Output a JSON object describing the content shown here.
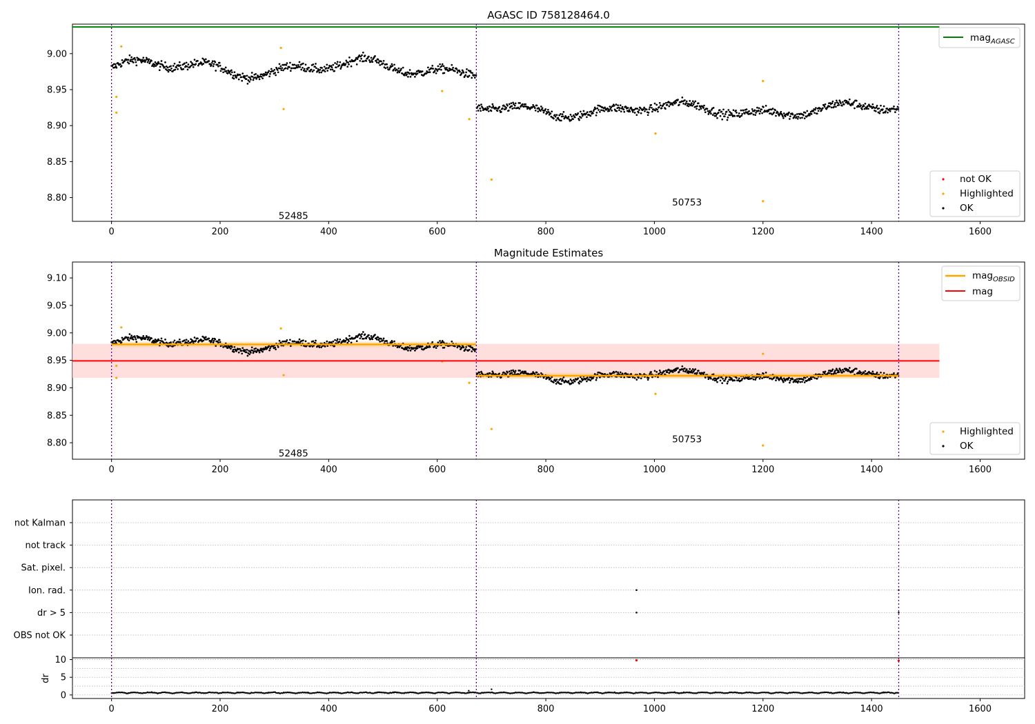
{
  "colors": {
    "ok": "#000000",
    "highlighted": "#ffa500",
    "not_ok": "#ff0000",
    "mag_agasc": "#008000",
    "mag": "#ff0000",
    "mag_obsid": "#ffa500",
    "band": "#ffd6d6",
    "obs_line": "#5a0089"
  },
  "chart_data": [
    {
      "type": "scatter",
      "title": "AGASC ID 758128464.0",
      "xlim": [
        -72,
        1682
      ],
      "ylim": [
        8.767,
        9.041
      ],
      "xticks": [
        0,
        200,
        400,
        600,
        800,
        1000,
        1200,
        1400,
        1600
      ],
      "yticks": [
        8.8,
        8.85,
        8.9,
        8.95,
        9.0
      ],
      "ytick_labels": [
        "8.80",
        "8.85",
        "8.90",
        "8.95",
        "9.00"
      ],
      "obs_boundaries": [
        0,
        672,
        1450
      ],
      "obs_labels": [
        {
          "text": "52485",
          "x": 335,
          "y": 8.775
        },
        {
          "text": "50753",
          "x": 1060,
          "y": 8.794
        }
      ],
      "lines": [
        {
          "name": "mag_AGASC",
          "y": 9.037,
          "x": [
            -72,
            1525
          ]
        }
      ],
      "segments": [
        {
          "x": [
            0,
            672
          ],
          "baseline": 8.98,
          "amplitude": 0.013,
          "noise": 0.006
        },
        {
          "x": [
            673,
            1450
          ],
          "baseline": 8.922,
          "amplitude": 0.01,
          "noise": 0.006
        }
      ],
      "highlighted_points": [
        {
          "x": 9,
          "y": 8.94
        },
        {
          "x": 9,
          "y": 8.918
        },
        {
          "x": 18,
          "y": 9.01
        },
        {
          "x": 312,
          "y": 9.008
        },
        {
          "x": 317,
          "y": 8.923
        },
        {
          "x": 609,
          "y": 8.948
        },
        {
          "x": 659,
          "y": 8.909
        },
        {
          "x": 700,
          "y": 8.825
        },
        {
          "x": 1002,
          "y": 8.889
        },
        {
          "x": 1200,
          "y": 8.962
        },
        {
          "x": 1200,
          "y": 8.795
        }
      ],
      "not_ok_points": [],
      "legend": {
        "upper": [
          "mag_AGASC"
        ],
        "lower": [
          "not OK",
          "Highlighted",
          "OK"
        ]
      }
    },
    {
      "type": "scatter",
      "title": "Magnitude Estimates",
      "xlim": [
        -72,
        1682
      ],
      "ylim": [
        8.77,
        9.129
      ],
      "xticks": [
        0,
        200,
        400,
        600,
        800,
        1000,
        1200,
        1400,
        1600
      ],
      "yticks": [
        8.8,
        8.85,
        8.9,
        8.95,
        9.0,
        9.05,
        9.1
      ],
      "ytick_labels": [
        "8.80",
        "8.85",
        "8.90",
        "8.95",
        "9.00",
        "9.05",
        "9.10"
      ],
      "obs_boundaries": [
        0,
        672,
        1450
      ],
      "obs_labels": [
        {
          "text": "52485",
          "x": 335,
          "y": 8.781
        },
        {
          "text": "50753",
          "x": 1060,
          "y": 8.807
        }
      ],
      "mag": {
        "value": 8.949,
        "band": [
          8.918,
          8.98
        ],
        "x": [
          -72,
          1525
        ]
      },
      "mag_obsid": [
        {
          "x": [
            0,
            672
          ],
          "value": 8.979,
          "band": [
            8.974,
            8.984
          ]
        },
        {
          "x": [
            673,
            1450
          ],
          "value": 8.922,
          "band": [
            8.917,
            8.927
          ]
        }
      ],
      "legend": {
        "upper": [
          "mag_OBSID",
          "mag"
        ],
        "lower": [
          "Highlighted",
          "OK"
        ]
      }
    },
    {
      "type": "scatter",
      "title": "",
      "xlim": [
        -72,
        1682
      ],
      "flag_rows": [
        "not Kalman",
        "not track",
        "Sat. pixel.",
        "Ion. rad.",
        "dr > 5",
        "OBS not OK"
      ],
      "flag_points": [
        {
          "row": "Ion. rad.",
          "x": 967
        },
        {
          "row": "dr > 5",
          "x": 967
        },
        {
          "row": "Ion. rad.",
          "x": 1450
        },
        {
          "row": "dr > 5",
          "x": 1450
        }
      ],
      "dr": {
        "ylabel": "dr",
        "ylim": [
          -1,
          10.5
        ],
        "yticks": [
          0,
          5,
          10
        ],
        "baseline": 0.4,
        "outliers_red": [
          {
            "x": 967,
            "y": 9.8
          },
          {
            "x": 1450,
            "y": 9.7
          }
        ],
        "spikes": [
          {
            "x": 658,
            "y": 1.2
          },
          {
            "x": 700,
            "y": 1.6
          }
        ]
      },
      "xticks": [
        0,
        200,
        400,
        600,
        800,
        1000,
        1200,
        1400,
        1600
      ]
    }
  ]
}
